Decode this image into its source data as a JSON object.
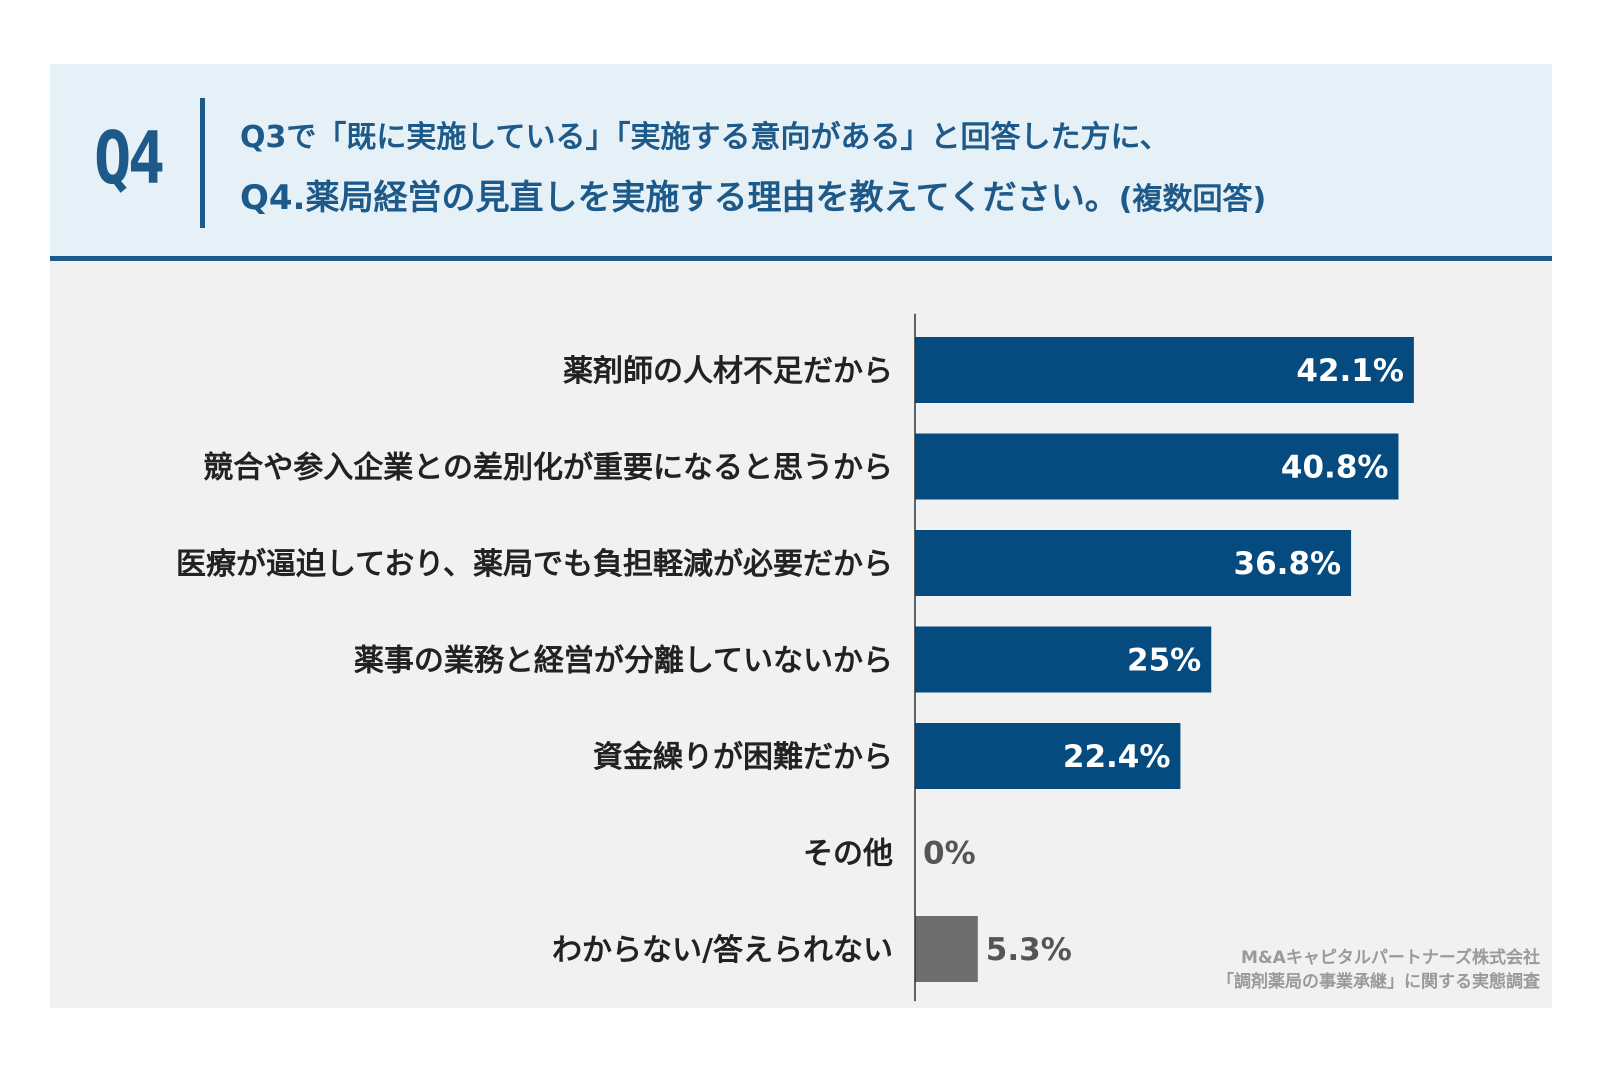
{
  "header": {
    "badge": "Q4",
    "line1": "Q3で「既に実施している」「実施する意向がある」と回答した方に、",
    "line2_main": "Q4.薬局経営の見直しを実施する理由を教えてください。",
    "line2_note": "(複数回答)"
  },
  "colors": {
    "primary": "#1d5a8a",
    "bar": "#064b7f",
    "bar_other": "#6e6e6e",
    "header_bg": "#e6f0f7",
    "plot_bg": "#f1f1f1"
  },
  "chart_data": {
    "type": "bar",
    "orientation": "horizontal",
    "categories": [
      "薬剤師の人材不足だから",
      "競合や参入企業との差別化が重要になると思うから",
      "医療が逼迫しており、薬局でも負担軽減が必要だから",
      "薬事の業務と経営が分離していないから",
      "資金繰りが困難だから",
      "その他",
      "わからない/答えられない"
    ],
    "values": [
      42.1,
      40.8,
      36.8,
      25,
      22.4,
      0,
      5.3
    ],
    "value_labels": [
      "42.1%",
      "40.8%",
      "36.8%",
      "25%",
      "22.4%",
      "0%",
      "5.3%"
    ],
    "bar_colors": [
      "#064b7f",
      "#064b7f",
      "#064b7f",
      "#064b7f",
      "#064b7f",
      "#064b7f",
      "#6e6e6e"
    ],
    "xlim": [
      0,
      100
    ],
    "unit": "%",
    "grid": false,
    "legend": "none"
  },
  "source": {
    "line1": "M&Aキャピタルパートナーズ株式会社",
    "line2": "「調剤薬局の事業承継」に関する実態調査"
  }
}
